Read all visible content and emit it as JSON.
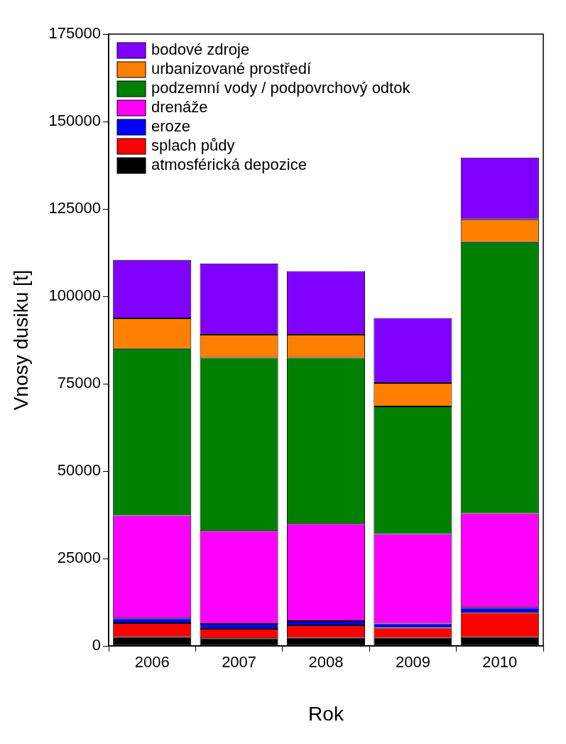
{
  "chart_data": {
    "type": "bar",
    "stacked": true,
    "x_label": "Rok",
    "y_label": "Vnosy dusiku [t]",
    "categories": [
      "2006",
      "2007",
      "2008",
      "2009",
      "2010"
    ],
    "series": [
      {
        "name": "atmosférická depozice",
        "color": "#000000",
        "values": [
          2500,
          2200,
          2300,
          2300,
          2500
        ]
      },
      {
        "name": "splach půdy",
        "color": "#ff0000",
        "values": [
          4000,
          2700,
          3600,
          2900,
          7000
        ]
      },
      {
        "name": "eroze",
        "color": "#0000ff",
        "values": [
          1400,
          1400,
          1200,
          1200,
          1400
        ]
      },
      {
        "name": "drenáže",
        "color": "#ff00ff",
        "values": [
          29400,
          26600,
          27800,
          25600,
          27000
        ]
      },
      {
        "name": "podzemní vody / podpovrchový odtok",
        "color": "#008000",
        "values": [
          47700,
          49500,
          47500,
          36500,
          77600
        ]
      },
      {
        "name": "urbanizované prostředí",
        "color": "#ff8000",
        "values": [
          8700,
          6600,
          6600,
          6700,
          6500
        ]
      },
      {
        "name": "bodové zdroje",
        "color": "#8000ff",
        "values": [
          16700,
          20400,
          18200,
          18600,
          17700
        ]
      }
    ],
    "ylim": [
      0,
      175000
    ],
    "yticks": [
      0,
      25000,
      50000,
      75000,
      100000,
      125000,
      150000,
      175000
    ],
    "grid": false,
    "legend": "upper left"
  }
}
